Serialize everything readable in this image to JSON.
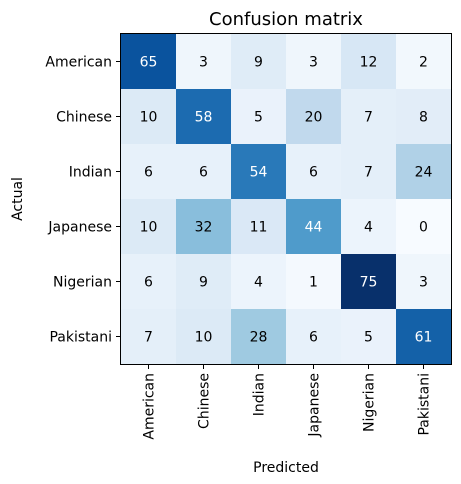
{
  "chart_data": {
    "type": "heatmap",
    "title": "Confusion matrix",
    "xlabel": "Predicted",
    "ylabel": "Actual",
    "x_categories": [
      "American",
      "Chinese",
      "Indian",
      "Japanese",
      "Nigerian",
      "Pakistani"
    ],
    "y_categories": [
      "American",
      "Chinese",
      "Indian",
      "Japanese",
      "Nigerian",
      "Pakistani"
    ],
    "values": [
      [
        65,
        3,
        9,
        3,
        12,
        2
      ],
      [
        10,
        58,
        5,
        20,
        7,
        8
      ],
      [
        6,
        6,
        54,
        6,
        7,
        24
      ],
      [
        10,
        32,
        11,
        44,
        4,
        0
      ],
      [
        6,
        9,
        4,
        1,
        75,
        3
      ],
      [
        7,
        10,
        28,
        6,
        5,
        61
      ]
    ],
    "colormap": "Blues",
    "value_range": [
      0,
      75
    ],
    "grid": false,
    "legend": "none"
  }
}
